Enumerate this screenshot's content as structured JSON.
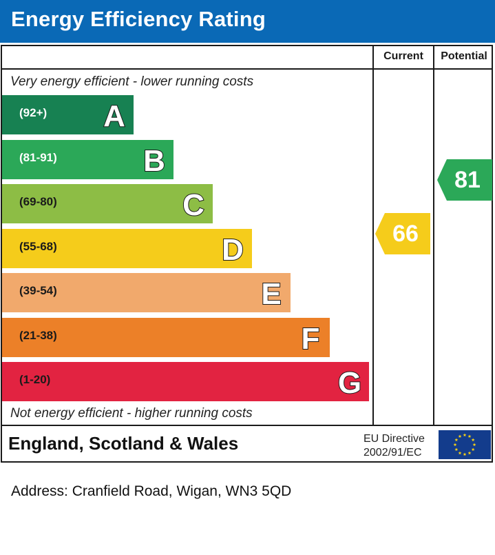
{
  "header": {
    "title": "Energy Efficiency Rating"
  },
  "columns": {
    "current": "Current",
    "potential": "Potential"
  },
  "captions": {
    "top": "Very energy efficient - lower running costs",
    "bottom": "Not energy efficient - higher running costs"
  },
  "chart_data": {
    "type": "bar",
    "title": "Energy Efficiency Rating",
    "categories": [
      "A",
      "B",
      "C",
      "D",
      "E",
      "F",
      "G"
    ],
    "ranges": [
      "(92+)",
      "(81-91)",
      "(69-80)",
      "(55-68)",
      "(39-54)",
      "(21-38)",
      "(1-20)"
    ],
    "colors": [
      "#178152",
      "#2ba858",
      "#8dbd45",
      "#f5cc1b",
      "#f1a96c",
      "#ec8028",
      "#e22341"
    ],
    "current": {
      "label": "Current",
      "value": 66,
      "band": "D",
      "color": "#f5cc1b"
    },
    "potential": {
      "label": "Potential",
      "value": 81,
      "band": "B",
      "color": "#2ba858"
    }
  },
  "footer": {
    "country": "England, Scotland & Wales",
    "eu_line1": "EU Directive",
    "eu_line2": "2002/91/EC"
  },
  "address": "Address: Cranfield Road, Wigan, WN3 5QD"
}
